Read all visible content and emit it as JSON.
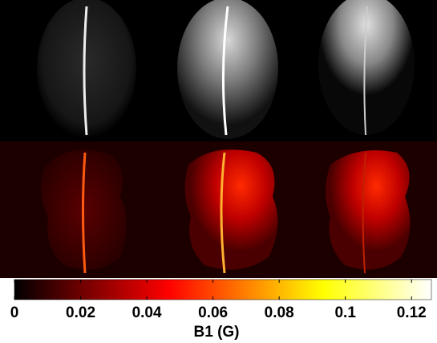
{
  "chart_data": {
    "type": "colorbar",
    "xlabel": "B1 (G)",
    "colormap": "hot",
    "xlim": [
      0,
      0.126
    ],
    "xticks": [
      0,
      0.02,
      0.04,
      0.06,
      0.08,
      0.1,
      0.12
    ]
  }
}
